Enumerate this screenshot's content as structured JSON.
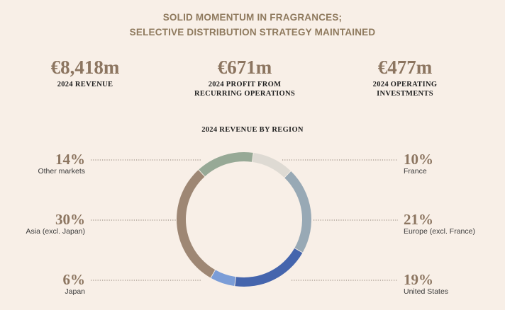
{
  "header": {
    "title_line1": "SOLID MOMENTUM IN FRAGRANCES;",
    "title_line2": "SELECTIVE DISTRIBUTION STRATEGY MAINTAINED"
  },
  "kpis": [
    {
      "value": "€8,418m",
      "label": "2024 REVENUE"
    },
    {
      "value": "€671m",
      "label": "2024 PROFIT FROM\nRECURRING OPERATIONS"
    },
    {
      "value": "€477m",
      "label": "2024 OPERATING\nINVESTMENTS"
    }
  ],
  "chart_data": {
    "type": "pie",
    "title": "2024 REVENUE BY REGION",
    "donut": true,
    "slices": [
      {
        "label": "France",
        "value": 10,
        "display": "10%",
        "color": "#dedad3"
      },
      {
        "label": "Europe (excl. France)",
        "value": 21,
        "display": "21%",
        "color": "#98a9b5"
      },
      {
        "label": "United States",
        "value": 19,
        "display": "19%",
        "color": "#4565ad"
      },
      {
        "label": "Japan",
        "value": 6,
        "display": "6%",
        "color": "#7b9dd7"
      },
      {
        "label": "Asia (excl. Japan)",
        "value": 30,
        "display": "30%",
        "color": "#9e8774"
      },
      {
        "label": "Other markets",
        "value": 14,
        "display": "14%",
        "color": "#97a996"
      }
    ]
  },
  "colors": {
    "background": "#f8efe7",
    "accent_title": "#8f7a5e",
    "kpi_value": "#8c7560",
    "percent_text": "#8c7560",
    "leader_line": "#8a7c70"
  }
}
